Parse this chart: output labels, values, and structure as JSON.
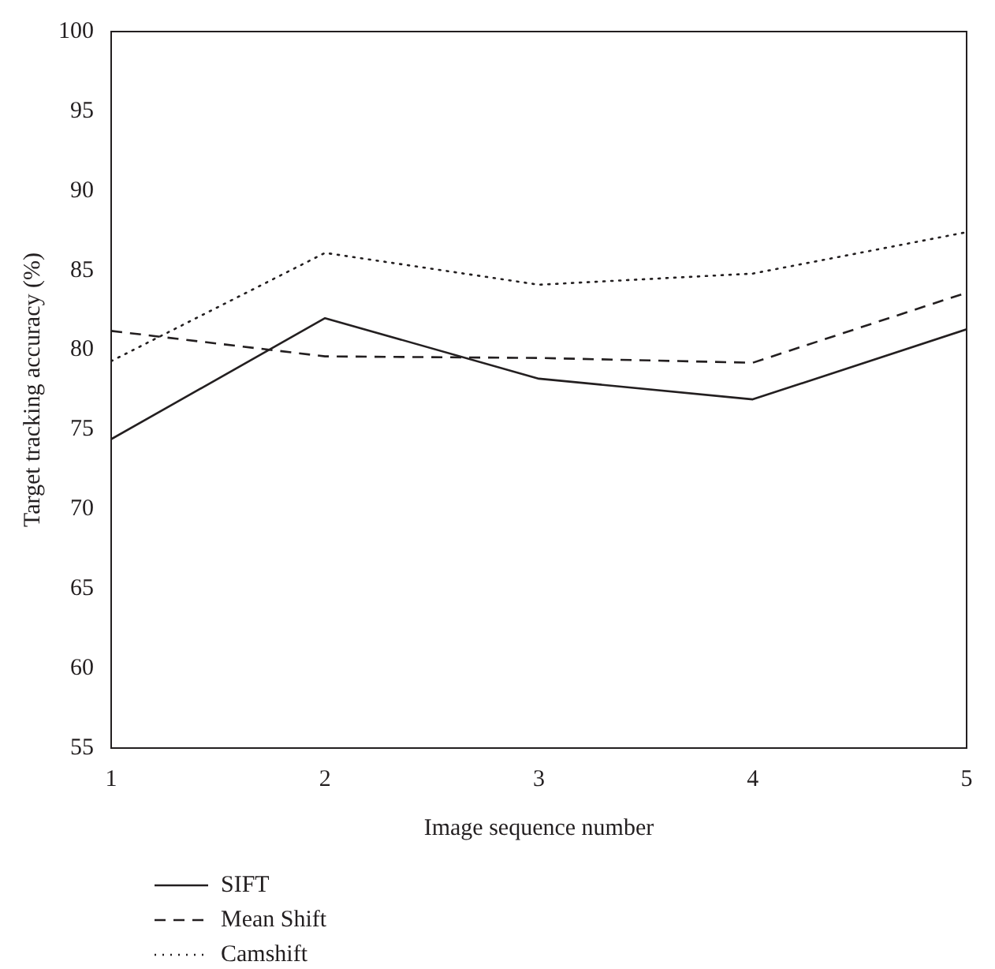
{
  "chart_data": {
    "type": "line",
    "xlabel": "Image sequence number",
    "ylabel": "Target tracking accuracy (%)",
    "x": [
      1,
      2,
      3,
      4,
      5
    ],
    "xlim": [
      1,
      5
    ],
    "xticks": [
      1,
      2,
      3,
      4,
      5
    ],
    "ylim": [
      55,
      100
    ],
    "yticks": [
      55,
      60,
      65,
      70,
      75,
      80,
      85,
      90,
      95,
      100
    ],
    "grid": false,
    "legend": "bottom left",
    "marker": "none",
    "series": [
      {
        "name": "SIFT",
        "color": "#231f20",
        "line_style": "solid",
        "values": [
          74.4,
          82.0,
          78.2,
          76.9,
          81.3
        ]
      },
      {
        "name": "Mean Shift",
        "color": "#231f20",
        "line_style": "dashed",
        "values": [
          81.2,
          79.6,
          79.5,
          79.2,
          83.6
        ]
      },
      {
        "name": "Camshift",
        "color": "#231f20",
        "line_style": "dotted",
        "values": [
          79.3,
          86.1,
          84.1,
          84.8,
          87.4
        ]
      }
    ]
  }
}
